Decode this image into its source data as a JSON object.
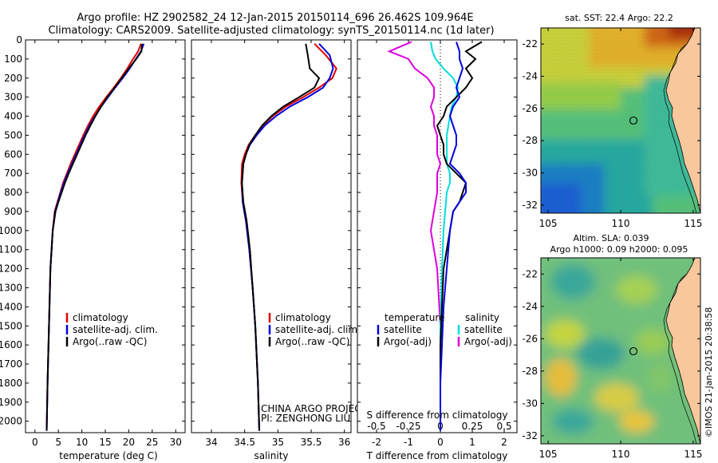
{
  "title_line1": "Argo profile: HZ 2902582_24 12-Jan-2015 20150114_696 26.462S 109.964E",
  "title_line2": "Climatology: CARS2009. Satellite-adjusted climatology: synTS_20150114.nc (1d later)",
  "credit_line1": "CHINA ARGO PROJECT",
  "credit_line2": "PI: ZENGHONG LIU",
  "imos_stamp": "©IMOS 21-Jan-2015 20:38:58",
  "colors": {
    "climatology": "#e00000",
    "satellite": "#0000e0",
    "argo": "#000000",
    "sat_salinity": "#00dddd",
    "argo_salinity": "#dd00dd"
  },
  "chart_data": [
    {
      "type": "line",
      "xlabel": "temperature (deg C)",
      "ylabel": "",
      "xlim": [
        -2,
        32
      ],
      "ylim": [
        2060,
        0
      ],
      "xticks": [
        "0",
        "5",
        "10",
        "15",
        "20",
        "25",
        "30"
      ],
      "yticks": [
        "0",
        "100",
        "200",
        "300",
        "400",
        "500",
        "600",
        "700",
        "800",
        "900",
        "1000",
        "1100",
        "1200",
        "1300",
        "1400",
        "1500",
        "1600",
        "1700",
        "1800",
        "1900",
        "2000"
      ],
      "legend": [
        "climatology",
        "satellite-adj. clim.",
        "Argo(..raw -QC)"
      ],
      "series": [
        {
          "name": "climatology",
          "x": [
            22.6,
            22.0,
            20.9,
            19.7,
            18.3,
            16.8,
            15.2,
            13.7,
            12.4,
            11.3,
            10.3,
            9.4,
            8.5,
            7.6,
            6.8,
            6.0,
            5.4,
            4.8,
            4.2,
            3.8,
            3.3,
            3.0,
            2.7,
            2.5
          ],
          "y": [
            20,
            60,
            100,
            150,
            200,
            250,
            300,
            350,
            400,
            450,
            500,
            550,
            600,
            650,
            700,
            750,
            800,
            850,
            900,
            1000,
            1200,
            1500,
            1800,
            2050
          ]
        },
        {
          "name": "satellite-adj. clim.",
          "x": [
            23.2,
            22.6,
            21.5,
            20.2,
            18.7,
            17.1,
            15.6,
            14.1,
            12.8,
            11.6,
            10.6,
            9.7,
            8.8,
            7.9,
            7.0,
            6.2,
            5.5,
            4.9,
            4.3,
            3.8,
            3.3,
            3.0,
            2.7,
            2.5
          ],
          "y": [
            20,
            60,
            100,
            150,
            200,
            250,
            300,
            350,
            400,
            450,
            500,
            550,
            600,
            650,
            700,
            750,
            800,
            850,
            900,
            1000,
            1200,
            1500,
            1800,
            2050
          ]
        },
        {
          "name": "Argo(..raw -QC)",
          "x": [
            22.8,
            22.7,
            21.6,
            20.0,
            18.5,
            17.0,
            15.4,
            14.1,
            12.9,
            11.8,
            10.8,
            9.9,
            9.0,
            8.1,
            7.2,
            6.4,
            5.7,
            5.0,
            4.4,
            3.8,
            3.3,
            3.0,
            2.7,
            2.5
          ],
          "y": [
            20,
            60,
            100,
            150,
            200,
            250,
            300,
            350,
            400,
            450,
            500,
            550,
            600,
            650,
            700,
            750,
            800,
            850,
            900,
            1000,
            1200,
            1500,
            1800,
            2050
          ]
        }
      ]
    },
    {
      "type": "line",
      "xlabel": "salinity",
      "xlim": [
        33.7,
        36.1
      ],
      "ylim": [
        2060,
        0
      ],
      "xticks": [
        "34",
        "34.5",
        "35",
        "35.5",
        "36"
      ],
      "legend": [
        "climatology",
        "satellite-adj. clim.",
        "Argo(..raw -QC)"
      ],
      "series": [
        {
          "name": "climatology",
          "x": [
            35.55,
            35.72,
            35.88,
            35.82,
            35.62,
            35.38,
            35.12,
            34.92,
            34.77,
            34.66,
            34.56,
            34.5,
            34.46,
            34.45,
            34.47,
            34.52,
            34.57,
            34.62,
            34.66,
            34.7,
            34.72
          ],
          "y": [
            20,
            80,
            150,
            200,
            250,
            300,
            350,
            400,
            450,
            500,
            550,
            600,
            650,
            750,
            850,
            950,
            1100,
            1300,
            1500,
            1800,
            2050
          ]
        },
        {
          "name": "satellite-adj. clim.",
          "x": [
            35.62,
            35.78,
            35.83,
            35.78,
            35.68,
            35.45,
            35.18,
            34.97,
            34.8,
            34.68,
            34.58,
            34.52,
            34.48,
            34.46,
            34.47,
            34.52,
            34.57,
            34.62,
            34.66,
            34.7,
            34.72
          ],
          "y": [
            20,
            80,
            150,
            200,
            250,
            300,
            350,
            400,
            450,
            500,
            550,
            600,
            650,
            750,
            850,
            950,
            1100,
            1300,
            1500,
            1800,
            2050
          ]
        },
        {
          "name": "Argo(..raw -QC)",
          "x": [
            35.42,
            35.45,
            35.48,
            35.62,
            35.55,
            35.32,
            35.08,
            34.9,
            34.76,
            34.66,
            34.57,
            34.52,
            34.48,
            34.46,
            34.48,
            34.53,
            34.58,
            34.62,
            34.66,
            34.7,
            34.72
          ],
          "y": [
            20,
            80,
            150,
            200,
            250,
            300,
            350,
            400,
            450,
            500,
            550,
            600,
            650,
            750,
            850,
            950,
            1100,
            1300,
            1500,
            1800,
            2050
          ]
        }
      ]
    },
    {
      "type": "line",
      "xlabel": "T difference from climatology",
      "xlabel_top": "S difference from climatology",
      "xlim": [
        -2.6,
        2.4
      ],
      "ylim": [
        2060,
        0
      ],
      "xticks_T": [
        "-2",
        "-1",
        "0",
        "1",
        "2"
      ],
      "xticks_S": [
        "-0.5",
        "-0.25",
        "0",
        "0.25",
        "0.5"
      ],
      "legend_titles": [
        "temperature",
        "salinity"
      ],
      "legend": [
        "satellite",
        "Argo(-adj)",
        "satellite",
        "Argo(-adj)"
      ],
      "series": [
        {
          "name": "satellite",
          "x": [
            0.5,
            0.6,
            0.6,
            0.7,
            0.6,
            0.5,
            0.6,
            0.4,
            0.3,
            0.4,
            0.5,
            0.5,
            0.4,
            0.3,
            0.6,
            0.8,
            0.8,
            0.6,
            0.4,
            0.3,
            0.2,
            0.1,
            0.05,
            0.0,
            0.0
          ],
          "y": [
            10,
            60,
            100,
            150,
            200,
            250,
            300,
            350,
            400,
            450,
            500,
            550,
            600,
            650,
            700,
            750,
            800,
            850,
            900,
            1000,
            1200,
            1400,
            1600,
            1800,
            2050
          ]
        },
        {
          "name": "Argo(-adj)",
          "x": [
            1.3,
            0.8,
            1.1,
            0.8,
            1.0,
            0.8,
            0.5,
            0.2,
            0.1,
            -0.1,
            0.0,
            0.1,
            0.1,
            0.2,
            0.5,
            0.8,
            0.7,
            0.6,
            0.4,
            0.3,
            0.1,
            0.05,
            0.0,
            0.0,
            0.0
          ],
          "y": [
            10,
            60,
            100,
            150,
            200,
            250,
            300,
            350,
            400,
            450,
            500,
            550,
            600,
            650,
            700,
            750,
            800,
            850,
            900,
            1000,
            1200,
            1400,
            1600,
            1800,
            2050
          ]
        },
        {
          "name": "satellite",
          "x": [
            -0.3,
            -0.25,
            -0.15,
            0.1,
            0.4,
            0.55,
            0.5,
            0.35,
            0.3,
            0.25,
            0.2,
            0.2,
            0.2,
            0.2,
            0.3,
            0.3,
            0.2,
            0.15,
            0.1,
            0.05,
            0.0,
            0.0,
            0.0
          ],
          "y": [
            10,
            60,
            100,
            150,
            200,
            250,
            300,
            350,
            400,
            450,
            500,
            550,
            600,
            650,
            700,
            750,
            800,
            900,
            1000,
            1200,
            1500,
            1800,
            2050
          ]
        },
        {
          "name": "Argo(-adj)",
          "x": [
            -0.9,
            -1.6,
            -1.0,
            -0.8,
            -0.4,
            -0.2,
            -0.2,
            -0.3,
            -0.2,
            -0.2,
            -0.1,
            -0.1,
            -0.1,
            0.0,
            -0.1,
            -0.1,
            -0.1,
            -0.2,
            -0.3,
            -0.1,
            0.0,
            0.0,
            0.0
          ],
          "y": [
            10,
            60,
            100,
            150,
            200,
            250,
            300,
            350,
            400,
            450,
            500,
            550,
            600,
            650,
            700,
            750,
            800,
            900,
            1000,
            1200,
            1500,
            1800,
            2050
          ]
        }
      ]
    },
    {
      "type": "heatmap",
      "title": "sat. SST: 22.4  Argo: 22.2",
      "xlim": [
        104.5,
        115.5
      ],
      "ylim": [
        -32.5,
        -21
      ],
      "xticks": [
        "105",
        "110",
        "115"
      ],
      "yticks": [
        "-22",
        "-24",
        "-26",
        "-28",
        "-30",
        "-32"
      ],
      "marker": {
        "lon": 109.964,
        "lat": -26.462
      }
    },
    {
      "type": "heatmap",
      "title_line1": "Altim. SLA: 0.039",
      "title_line2": "Argo h1000: 0.09 h2000: 0.095",
      "xlim": [
        104.5,
        115.5
      ],
      "ylim": [
        -32.5,
        -21
      ],
      "xticks": [
        "105",
        "110",
        "115"
      ],
      "yticks": [
        "-22",
        "-24",
        "-26",
        "-28",
        "-30",
        "-32"
      ],
      "marker": {
        "lon": 109.964,
        "lat": -26.462
      }
    }
  ]
}
